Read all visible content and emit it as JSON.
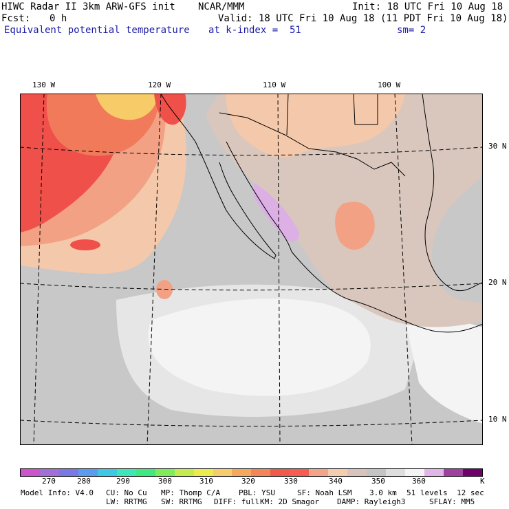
{
  "header": {
    "title": "HIWC Radar II 3km ARW-GFS init",
    "org": "NCAR/MMM",
    "init": "Init: 18 UTC Fri 10 Aug 18",
    "fcst_label": "Fcst:",
    "fcst_value": "0 h",
    "valid": "Valid: 18 UTC Fri 10 Aug 18 (11 PDT Fri 10 Aug 18)",
    "field": "Equivalent potential temperature",
    "level": "at k-index =  51",
    "smoothing": "sm= 2"
  },
  "map": {
    "lon_labels": [
      "130 W",
      "120 W",
      "110 W",
      "100 W"
    ],
    "lat_labels": [
      "30 N",
      "20 N",
      "10 N"
    ],
    "colors": {
      "warmest": "#f0504a",
      "warm": "#f07a5a",
      "mid_warm": "#f3a184",
      "light_warm": "#f4c8aa",
      "neutral": "#d9c7bd",
      "cool_gray": "#c8c8c8",
      "pale": "#e6e6e6",
      "white": "#f4f4f4",
      "violet": "#dcb0e4",
      "yellow": "#f7cc68"
    }
  },
  "colorbar": {
    "colors": [
      "#cc55cc",
      "#a070d8",
      "#7a78e6",
      "#5a9cef",
      "#3ec8e4",
      "#3ee6b8",
      "#40e880",
      "#80ec5a",
      "#c4ec50",
      "#ecec50",
      "#f6cc6c",
      "#f6a85c",
      "#f4845a",
      "#f05a4a",
      "#f65c52",
      "#f4a488",
      "#f4ccb0",
      "#d8c4bc",
      "#c4c4c4",
      "#dedede",
      "#f4f4f4",
      "#e0b6e8",
      "#a040a0",
      "#70006c"
    ],
    "labels": [
      "270",
      "280",
      "290",
      "300",
      "310",
      "320",
      "330",
      "340",
      "350",
      "360"
    ],
    "unit": "K"
  },
  "footer": {
    "model_info": "Model Info: V4.0",
    "cu": "CU: No Cu",
    "mp": "MP: Thomp C/A",
    "pbl": "PBL: YSU",
    "sf": "SF: Noah LSM",
    "res": "3.0 km",
    "levels": "51 levels",
    "dt": "12 sec",
    "lw": "LW: RRTMG",
    "sw": "SW: RRTMG",
    "diff": "DIFF: full",
    "km": "KM: 2D Smagor",
    "damp": "DAMP: Rayleigh3",
    "sflay": "SFLAY: MM5"
  }
}
